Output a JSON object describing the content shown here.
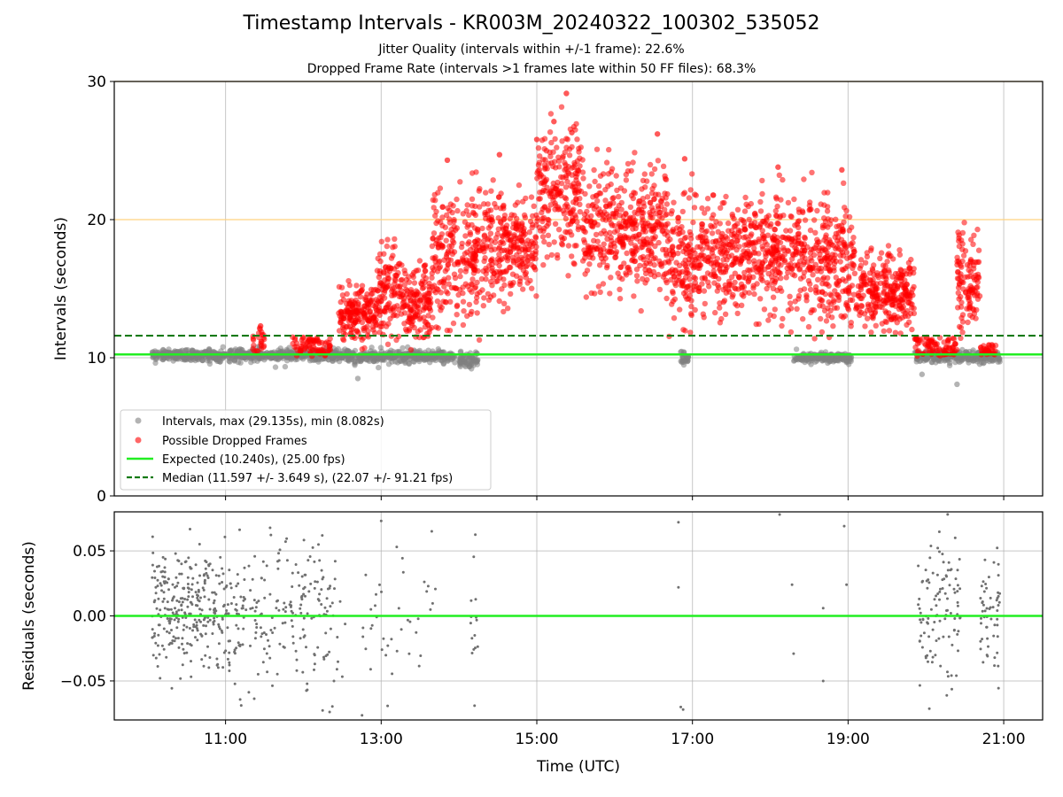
{
  "chart_data": {
    "type": "scatter",
    "title": "Timestamp Intervals - KR003M_20240322_100302_535052",
    "subtitle_lines": [
      "Jitter Quality (intervals within +/-1 frame): 22.6%",
      "Dropped Frame Rate (intervals >1 frames late within 50 FF files): 68.3%"
    ],
    "xlabel": "Time (UTC)",
    "x_ticks": [
      "11:00",
      "13:00",
      "15:00",
      "17:00",
      "19:00",
      "21:00"
    ],
    "x_tick_hours": [
      11,
      13,
      15,
      17,
      19,
      21
    ],
    "x_range_hours": [
      9.57,
      21.5
    ],
    "panels": [
      {
        "id": "intervals",
        "ylabel": "Intervals (seconds)",
        "ylim": [
          0,
          30
        ],
        "y_ticks": [
          0,
          10,
          20,
          30
        ],
        "grid": true,
        "reference_lines": [
          {
            "name": "frame limit 20",
            "y": 20,
            "color": "#ffd27f",
            "style": "solid"
          },
          {
            "name": "frame limit 30",
            "y": 30,
            "color": "#ffd27f",
            "style": "solid"
          },
          {
            "name": "Expected (10.240s), (25.00 fps)",
            "y": 10.24,
            "color": "#22ee22",
            "style": "solid"
          },
          {
            "name": "Median (11.597 +/- 3.649 s), (22.07 +/- 91.21 fps)",
            "y": 11.597,
            "color": "#117a11",
            "style": "dashed"
          }
        ],
        "series": [
          {
            "name": "Intervals, max (29.135s), min (8.082s)",
            "color": "#808080",
            "segments": [
              {
                "start": 10.05,
                "end": 12.45,
                "mean": 10.2,
                "spread": 0.35
              },
              {
                "start": 12.45,
                "end": 13.95,
                "mean": 10.1,
                "spread": 0.35
              },
              {
                "start": 14.0,
                "end": 14.25,
                "mean": 9.8,
                "spread": 0.45
              },
              {
                "start": 16.85,
                "end": 16.95,
                "mean": 10.0,
                "spread": 0.4
              },
              {
                "start": 18.3,
                "end": 19.05,
                "mean": 10.0,
                "spread": 0.3
              },
              {
                "start": 19.85,
                "end": 20.95,
                "mean": 10.1,
                "spread": 0.35
              }
            ],
            "extremes": [
              {
                "x": 12.7,
                "y": 8.5
              },
              {
                "x": 20.4,
                "y": 8.08
              },
              {
                "x": 19.95,
                "y": 8.8
              }
            ]
          },
          {
            "name": "Possible Dropped Frames",
            "color": "#ff0000",
            "envelope": [
              {
                "start": 11.35,
                "end": 11.5,
                "min": 10.2,
                "max": 12.2
              },
              {
                "start": 11.85,
                "end": 12.35,
                "min": 10.1,
                "max": 11.5
              },
              {
                "start": 12.45,
                "end": 12.95,
                "min": 10.2,
                "max": 16.0
              },
              {
                "start": 12.95,
                "end": 13.25,
                "min": 10.2,
                "max": 19.3
              },
              {
                "start": 13.25,
                "end": 13.65,
                "min": 10.2,
                "max": 17.8
              },
              {
                "start": 13.65,
                "end": 14.0,
                "min": 10.3,
                "max": 24.3
              },
              {
                "start": 14.0,
                "end": 14.6,
                "min": 10.3,
                "max": 24.7
              },
              {
                "start": 14.6,
                "end": 15.0,
                "min": 13.0,
                "max": 23.5
              },
              {
                "start": 15.0,
                "end": 15.6,
                "min": 14.5,
                "max": 29.1
              },
              {
                "start": 15.6,
                "end": 16.7,
                "min": 12.5,
                "max": 26.2
              },
              {
                "start": 16.7,
                "end": 17.2,
                "min": 10.2,
                "max": 24.4
              },
              {
                "start": 17.2,
                "end": 17.8,
                "min": 11.5,
                "max": 23.5
              },
              {
                "start": 17.8,
                "end": 18.4,
                "min": 11.0,
                "max": 23.8
              },
              {
                "start": 18.4,
                "end": 19.1,
                "min": 10.2,
                "max": 23.6
              },
              {
                "start": 19.1,
                "end": 19.85,
                "min": 10.5,
                "max": 18.9
              },
              {
                "start": 19.85,
                "end": 20.4,
                "min": 10.1,
                "max": 11.5
              },
              {
                "start": 20.4,
                "end": 20.7,
                "min": 10.3,
                "max": 20.6
              },
              {
                "start": 20.7,
                "end": 20.9,
                "min": 10.2,
                "max": 11.0
              }
            ],
            "peaks": [
              {
                "x": 15.38,
                "y": 29.135
              },
              {
                "x": 15.22,
                "y": 27.1
              },
              {
                "x": 15.0,
                "y": 25.8
              },
              {
                "x": 15.45,
                "y": 26.3
              },
              {
                "x": 16.55,
                "y": 26.2
              },
              {
                "x": 13.85,
                "y": 24.3
              },
              {
                "x": 14.52,
                "y": 24.7
              },
              {
                "x": 16.9,
                "y": 24.4
              },
              {
                "x": 18.1,
                "y": 23.8
              },
              {
                "x": 18.92,
                "y": 23.6
              },
              {
                "x": 11.45,
                "y": 12.3
              }
            ]
          }
        ],
        "legend": {
          "placement": "lower-left",
          "entries": [
            "Intervals, max (29.135s), min (8.082s)",
            "Possible Dropped Frames",
            "Expected (10.240s), (25.00 fps)",
            "Median (11.597 +/- 3.649 s), (22.07 +/- 91.21 fps)"
          ]
        }
      },
      {
        "id": "residuals",
        "ylabel": "Residuals (seconds)",
        "ylim": [
          -0.08,
          0.08
        ],
        "y_ticks": [
          0.05,
          0.0,
          -0.05
        ],
        "y_tick_labels": [
          "0.05",
          "0.00",
          "−0.05"
        ],
        "grid": true,
        "reference_lines": [
          {
            "name": "zero",
            "y": 0.0,
            "color": "#22ee22",
            "style": "solid"
          }
        ],
        "series": [
          {
            "name": "residuals",
            "color": "#707070",
            "clusters": [
              {
                "start": 10.05,
                "end": 10.9,
                "n": 260,
                "mean": 0.005,
                "spread": 0.045
              },
              {
                "start": 10.9,
                "end": 11.5,
                "n": 110,
                "mean": 0.0,
                "spread": 0.05
              },
              {
                "start": 11.5,
                "end": 12.35,
                "n": 130,
                "mean": 0.0,
                "spread": 0.055
              },
              {
                "start": 12.35,
                "end": 12.55,
                "n": 14,
                "mean": 0.0,
                "spread": 0.06
              },
              {
                "start": 12.75,
                "end": 13.7,
                "n": 40,
                "mean": 0.0,
                "spread": 0.06
              },
              {
                "start": 14.15,
                "end": 14.25,
                "n": 14,
                "mean": 0.0,
                "spread": 0.05
              },
              {
                "start": 19.9,
                "end": 20.45,
                "n": 110,
                "mean": 0.0,
                "spread": 0.055
              },
              {
                "start": 20.7,
                "end": 20.95,
                "n": 55,
                "mean": 0.0,
                "spread": 0.04
              }
            ],
            "points": [
              {
                "x": 16.82,
                "y": 0.022
              },
              {
                "x": 16.82,
                "y": 0.072
              },
              {
                "x": 16.85,
                "y": -0.07
              },
              {
                "x": 16.88,
                "y": -0.072
              },
              {
                "x": 18.12,
                "y": 0.078
              },
              {
                "x": 18.28,
                "y": 0.024
              },
              {
                "x": 18.3,
                "y": -0.029
              },
              {
                "x": 18.68,
                "y": 0.006
              },
              {
                "x": 18.68,
                "y": -0.05
              },
              {
                "x": 18.95,
                "y": 0.069
              },
              {
                "x": 18.98,
                "y": 0.024
              },
              {
                "x": 13.0,
                "y": 0.073
              },
              {
                "x": 13.2,
                "y": 0.053
              },
              {
                "x": 13.65,
                "y": 0.065
              },
              {
                "x": 14.2,
                "y": -0.069
              }
            ]
          }
        ]
      }
    ]
  }
}
